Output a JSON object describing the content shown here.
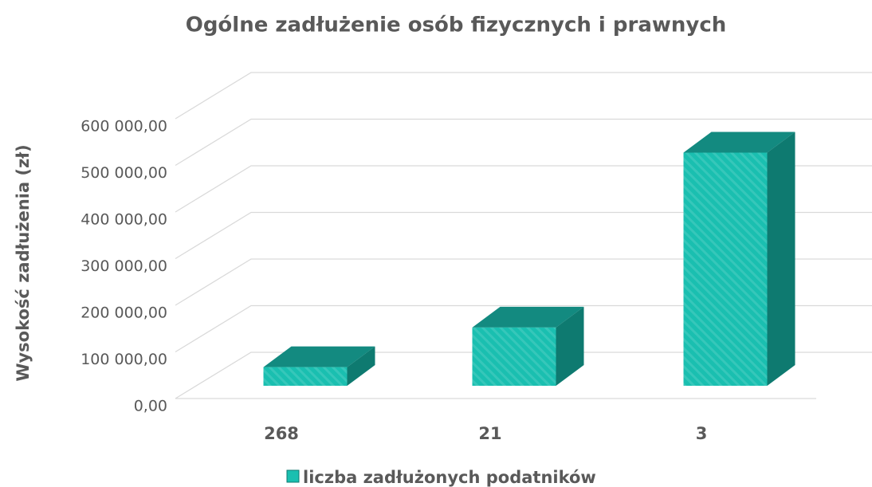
{
  "chart_data": {
    "type": "bar3d",
    "title": "Ogólne zadłużenie osób fizycznych i prawnych",
    "y_label": "Wysokość zadłużenia (zł)",
    "categories": [
      "268",
      "21",
      "3"
    ],
    "series": [
      {
        "name": "liczba zadłużonych podatników",
        "color": "#1abfb0",
        "values": [
          40000,
          125000,
          500000
        ]
      }
    ],
    "ylim": [
      0,
      600000
    ],
    "yticks": [
      {
        "value": 0,
        "label": "0,00"
      },
      {
        "value": 100000,
        "label": "100 000,00"
      },
      {
        "value": 200000,
        "label": "200 000,00"
      },
      {
        "value": 300000,
        "label": "300 000,00"
      },
      {
        "value": 400000,
        "label": "400 000,00"
      },
      {
        "value": 500000,
        "label": "500 000,00"
      },
      {
        "value": 600000,
        "label": "600 000,00"
      }
    ],
    "grid": true,
    "legend": "bottom"
  }
}
